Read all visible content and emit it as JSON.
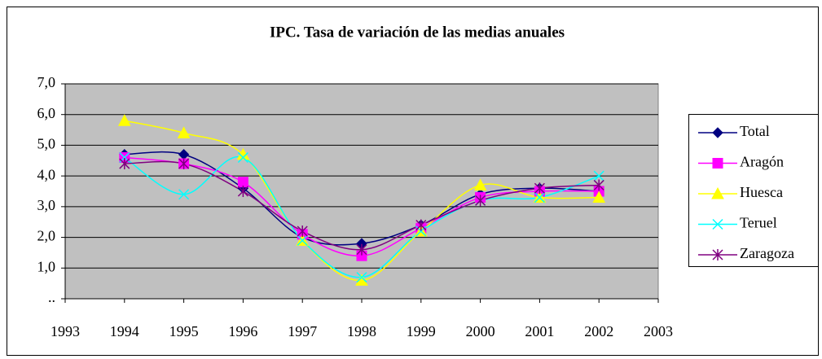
{
  "chart_data": {
    "type": "line",
    "title": "IPC. Tasa de variación de las medias anuales",
    "x": [
      1994,
      1995,
      1996,
      1997,
      1998,
      1999,
      2000,
      2001,
      2002
    ],
    "series": [
      {
        "name": "Total",
        "color": "#000080",
        "marker": "diamond",
        "values": [
          4.7,
          4.7,
          3.6,
          2.0,
          1.8,
          2.4,
          3.4,
          3.6,
          3.5
        ]
      },
      {
        "name": "Aragón",
        "color": "#ff00ff",
        "marker": "square",
        "values": [
          4.6,
          4.4,
          3.8,
          2.1,
          1.4,
          2.3,
          3.3,
          3.5,
          3.5
        ]
      },
      {
        "name": "Huesca",
        "color": "#ffff00",
        "marker": "triangle",
        "values": [
          5.8,
          5.4,
          4.7,
          1.9,
          0.6,
          2.2,
          3.7,
          3.3,
          3.3
        ]
      },
      {
        "name": "Teruel",
        "color": "#00ffff",
        "marker": "cross",
        "values": [
          4.6,
          3.4,
          4.6,
          1.9,
          0.7,
          2.2,
          3.2,
          3.3,
          4.0
        ]
      },
      {
        "name": "Zaragoza",
        "color": "#800080",
        "marker": "star",
        "values": [
          4.4,
          4.4,
          3.5,
          2.2,
          1.6,
          2.4,
          3.2,
          3.6,
          3.7
        ]
      }
    ],
    "xlim": [
      1993,
      2003
    ],
    "xticks": [
      1993,
      1994,
      1995,
      1996,
      1997,
      1998,
      1999,
      2000,
      2001,
      2002,
      2003
    ],
    "ylim": [
      0,
      7
    ],
    "yticks": [
      {
        "value": 0,
        "label": ".."
      },
      {
        "value": 1,
        "label": "1,0"
      },
      {
        "value": 2,
        "label": "2,0"
      },
      {
        "value": 3,
        "label": "3,0"
      },
      {
        "value": 4,
        "label": "4,0"
      },
      {
        "value": 5,
        "label": "5,0"
      },
      {
        "value": 6,
        "label": "6,0"
      },
      {
        "value": 7,
        "label": "7,0"
      }
    ],
    "grid": true,
    "smooth": true,
    "legend": "right",
    "plot_background": "#c0c0c0"
  }
}
